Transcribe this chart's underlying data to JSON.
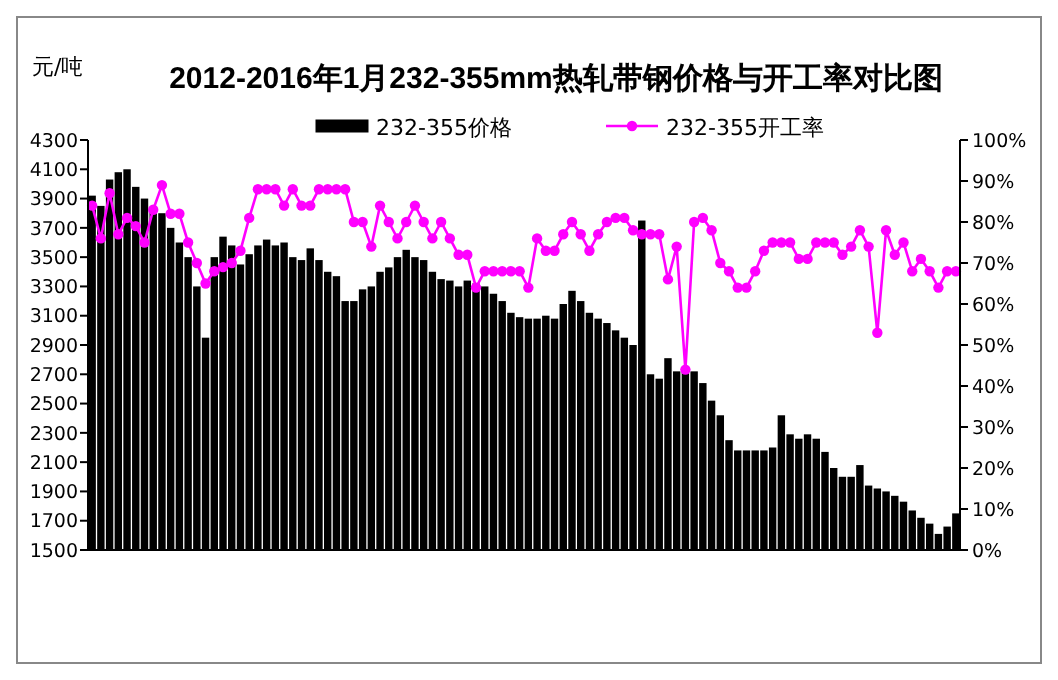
{
  "chart_data": {
    "type": "bar",
    "title": "2012-2016年1月232-355mm热轧带钢价格与开工率对比图",
    "ylabel": "元/吨",
    "legend": "top",
    "categories": [
      null,
      null,
      null,
      null,
      null,
      null,
      null,
      null,
      null,
      null,
      null,
      null,
      null,
      null,
      null,
      null,
      null,
      null,
      null,
      null,
      null,
      null,
      null,
      null,
      null,
      null,
      null,
      null,
      null,
      null,
      null,
      null,
      null,
      null,
      null,
      null,
      null,
      null,
      null,
      null,
      null,
      null,
      null,
      null,
      null,
      null,
      null,
      null,
      null,
      null,
      null,
      null,
      null,
      null,
      null,
      null,
      null,
      null,
      null,
      null,
      null,
      null,
      null,
      null,
      null,
      null,
      null,
      null,
      null,
      null,
      null,
      null,
      null,
      null,
      null,
      null,
      null,
      null,
      null,
      null,
      null,
      null,
      null,
      null,
      null,
      null,
      null,
      null,
      null,
      null,
      null,
      null,
      null,
      null,
      null,
      null,
      null,
      null,
      null,
      null
    ],
    "ylim": [
      1500,
      4300
    ],
    "yticks": [
      1500,
      1700,
      1900,
      2100,
      2300,
      2500,
      2700,
      2900,
      3100,
      3300,
      3500,
      3700,
      3900,
      4100,
      4300
    ],
    "y2lim": [
      0,
      100
    ],
    "y2ticks": [
      {
        "value": 0,
        "label": "0%"
      },
      {
        "value": 10,
        "label": "10%"
      },
      {
        "value": 20,
        "label": "20%"
      },
      {
        "value": 30,
        "label": "30%"
      },
      {
        "value": 40,
        "label": "40%"
      },
      {
        "value": 50,
        "label": "50%"
      },
      {
        "value": 60,
        "label": "60%"
      },
      {
        "value": 70,
        "label": "70%"
      },
      {
        "value": 80,
        "label": "80%"
      },
      {
        "value": 90,
        "label": "90%"
      },
      {
        "value": 100,
        "label": "100%"
      }
    ],
    "grid": false,
    "series": [
      {
        "name": "232-355价格",
        "color": "#000000",
        "values": [
          3920,
          3850,
          4030,
          4080,
          4100,
          3980,
          3900,
          3820,
          3800,
          3700,
          3600,
          3500,
          3300,
          2950,
          3500,
          3640,
          3580,
          3450,
          3520,
          3580,
          3620,
          3580,
          3600,
          3500,
          3480,
          3560,
          3480,
          3400,
          3370,
          3200,
          3200,
          3280,
          3300,
          3400,
          3430,
          3500,
          3550,
          3500,
          3480,
          3400,
          3350,
          3340,
          3300,
          3340,
          3320,
          3300,
          3250,
          3200,
          3120,
          3090,
          3080,
          3080,
          3100,
          3080,
          3180,
          3270,
          3200,
          3120,
          3080,
          3050,
          3000,
          2950,
          2900,
          3750,
          2700,
          2670,
          2810,
          2720,
          2720,
          2720,
          2640,
          2520,
          2420,
          2250,
          2180,
          2180,
          2180,
          2180,
          2200,
          2420,
          2290,
          2260,
          2290,
          2260,
          2170,
          2060,
          2000,
          2000,
          2080,
          1940,
          1920,
          1900,
          1870,
          1830,
          1770,
          1720,
          1680,
          1610,
          1660,
          1750
        ]
      },
      {
        "name": "232-355开工率",
        "type": "line",
        "axis": "y2",
        "color": "#ff00ff",
        "marker": "circle",
        "line_style": "solid",
        "values": [
          84,
          76,
          87,
          77,
          81,
          79,
          75,
          83,
          89,
          82,
          82,
          75,
          70,
          65,
          68,
          69,
          70,
          73,
          81,
          88,
          88,
          88,
          84,
          88,
          84,
          84,
          88,
          88,
          88,
          88,
          80,
          80,
          74,
          84,
          80,
          76,
          80,
          84,
          80,
          76,
          80,
          76,
          72,
          72,
          64,
          68,
          68,
          68,
          68,
          68,
          64,
          76,
          73,
          73,
          77,
          80,
          77,
          73,
          77,
          80,
          81,
          81,
          78,
          77,
          77,
          77,
          66,
          74,
          44,
          80,
          81,
          78,
          70,
          68,
          64,
          64,
          68,
          73,
          75,
          75,
          75,
          71,
          71,
          75,
          75,
          75,
          72,
          74,
          78,
          74,
          53,
          78,
          72,
          75,
          68,
          71,
          68,
          64,
          68,
          68
        ]
      }
    ]
  }
}
